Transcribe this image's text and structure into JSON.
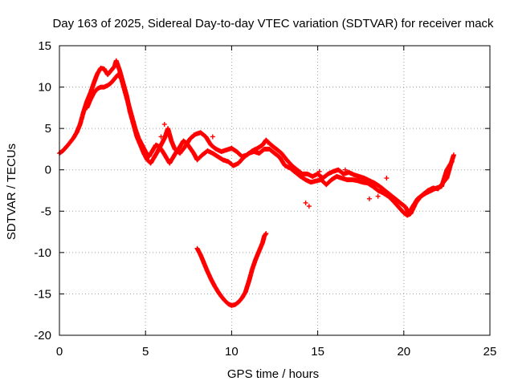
{
  "chart_data": {
    "type": "scatter",
    "title": "Day 163 of 2025, Sidereal Day-to-day VTEC variation (SDTVAR) for receiver mack",
    "xlabel": "GPS time / hours",
    "ylabel": "SDTVAR / TECUs",
    "xlim": [
      0,
      25
    ],
    "ylim": [
      -20,
      15
    ],
    "xticks": [
      0,
      5,
      10,
      15,
      20,
      25
    ],
    "yticks": [
      -20,
      -15,
      -10,
      -5,
      0,
      5,
      10,
      15
    ],
    "grid": true,
    "marker": "plus",
    "color": "#ff0000",
    "series": [
      {
        "name": "SDTVAR main trace",
        "points": [
          [
            0.0,
            2.0
          ],
          [
            0.2,
            2.3
          ],
          [
            0.5,
            3.0
          ],
          [
            0.8,
            3.8
          ],
          [
            1.0,
            4.5
          ],
          [
            1.2,
            5.5
          ],
          [
            1.4,
            7.0
          ],
          [
            1.6,
            8.3
          ],
          [
            1.8,
            9.3
          ],
          [
            2.0,
            10.5
          ],
          [
            2.2,
            11.6
          ],
          [
            2.4,
            12.3
          ],
          [
            2.6,
            12.2
          ],
          [
            2.8,
            11.5
          ],
          [
            3.0,
            12.0
          ],
          [
            3.2,
            12.5
          ],
          [
            3.3,
            13.2
          ],
          [
            3.5,
            12.0
          ],
          [
            3.7,
            10.5
          ],
          [
            3.9,
            9.0
          ],
          [
            4.1,
            7.0
          ],
          [
            4.3,
            5.5
          ],
          [
            4.5,
            4.0
          ],
          [
            4.7,
            3.0
          ],
          [
            4.9,
            2.0
          ],
          [
            5.1,
            1.2
          ],
          [
            5.3,
            0.8
          ],
          [
            5.5,
            1.5
          ],
          [
            5.7,
            2.2
          ],
          [
            5.9,
            3.0
          ],
          [
            6.1,
            3.8
          ],
          [
            6.3,
            5.0
          ],
          [
            6.5,
            3.5
          ],
          [
            6.7,
            2.5
          ],
          [
            7.0,
            2.0
          ],
          [
            7.3,
            2.8
          ],
          [
            7.6,
            3.8
          ],
          [
            7.9,
            4.3
          ],
          [
            8.2,
            4.5
          ],
          [
            8.5,
            4.0
          ],
          [
            8.8,
            3.0
          ],
          [
            9.1,
            2.5
          ],
          [
            9.4,
            2.2
          ],
          [
            9.7,
            2.4
          ],
          [
            10.0,
            2.6
          ],
          [
            10.3,
            2.2
          ],
          [
            10.6,
            1.6
          ],
          [
            10.9,
            1.8
          ],
          [
            11.2,
            2.3
          ],
          [
            11.5,
            2.6
          ],
          [
            11.8,
            3.0
          ],
          [
            12.0,
            3.6
          ],
          [
            12.3,
            3.0
          ],
          [
            12.6,
            2.5
          ],
          [
            12.9,
            2.0
          ],
          [
            13.2,
            1.2
          ],
          [
            13.5,
            0.5
          ],
          [
            13.8,
            0.0
          ],
          [
            14.1,
            -0.5
          ],
          [
            14.4,
            -0.5
          ],
          [
            14.7,
            -0.8
          ],
          [
            15.0,
            -0.5
          ],
          [
            15.3,
            -1.0
          ],
          [
            15.6,
            -0.5
          ],
          [
            15.9,
            -0.2
          ],
          [
            16.2,
            0.0
          ],
          [
            16.5,
            -0.5
          ],
          [
            16.8,
            -0.3
          ],
          [
            17.1,
            -0.6
          ],
          [
            17.4,
            -0.8
          ],
          [
            17.7,
            -1.0
          ],
          [
            18.0,
            -1.3
          ],
          [
            18.3,
            -1.6
          ],
          [
            18.6,
            -2.0
          ],
          [
            18.9,
            -2.5
          ],
          [
            19.2,
            -3.0
          ],
          [
            19.5,
            -3.5
          ],
          [
            19.8,
            -4.0
          ],
          [
            20.1,
            -4.5
          ],
          [
            20.3,
            -5.3
          ],
          [
            20.5,
            -4.5
          ],
          [
            20.8,
            -3.5
          ],
          [
            21.1,
            -3.0
          ],
          [
            21.4,
            -2.5
          ],
          [
            21.7,
            -2.2
          ],
          [
            22.0,
            -2.3
          ],
          [
            22.3,
            -1.5
          ],
          [
            22.5,
            -1.0
          ],
          [
            22.7,
            0.5
          ],
          [
            22.9,
            1.8
          ]
        ]
      },
      {
        "name": "SDTVAR secondary branches",
        "points": [
          [
            1.6,
            7.5
          ],
          [
            1.8,
            8.5
          ],
          [
            2.0,
            9.3
          ],
          [
            2.2,
            9.8
          ],
          [
            2.4,
            10.0
          ],
          [
            2.6,
            10.0
          ],
          [
            2.8,
            10.2
          ],
          [
            3.0,
            10.5
          ],
          [
            3.2,
            11.0
          ],
          [
            3.4,
            11.5
          ],
          [
            3.6,
            11.0
          ],
          [
            3.8,
            9.5
          ],
          [
            4.0,
            8.0
          ],
          [
            4.2,
            6.5
          ],
          [
            4.4,
            5.0
          ],
          [
            4.6,
            3.8
          ],
          [
            4.8,
            3.0
          ],
          [
            5.0,
            2.2
          ],
          [
            5.2,
            1.6
          ],
          [
            5.4,
            2.3
          ],
          [
            5.6,
            3.0
          ],
          [
            5.8,
            2.8
          ],
          [
            6.0,
            2.2
          ],
          [
            6.2,
            1.5
          ],
          [
            6.4,
            0.8
          ],
          [
            6.6,
            1.5
          ],
          [
            6.8,
            2.2
          ],
          [
            7.0,
            2.8
          ],
          [
            7.2,
            3.5
          ],
          [
            7.4,
            3.2
          ],
          [
            7.6,
            2.6
          ],
          [
            7.8,
            2.0
          ],
          [
            8.0,
            1.2
          ],
          [
            8.3,
            1.8
          ],
          [
            8.6,
            2.3
          ],
          [
            8.9,
            2.0
          ],
          [
            9.2,
            1.6
          ],
          [
            9.5,
            1.2
          ],
          [
            9.8,
            1.0
          ],
          [
            10.1,
            0.5
          ],
          [
            10.4,
            0.8
          ],
          [
            10.7,
            1.5
          ],
          [
            11.0,
            2.0
          ],
          [
            11.3,
            2.2
          ],
          [
            11.6,
            2.0
          ],
          [
            11.9,
            2.5
          ],
          [
            12.2,
            2.5
          ],
          [
            12.5,
            2.0
          ],
          [
            12.8,
            1.5
          ],
          [
            13.1,
            0.5
          ],
          [
            13.4,
            0.2
          ],
          [
            13.7,
            -0.3
          ],
          [
            14.0,
            -0.8
          ],
          [
            14.3,
            -1.2
          ],
          [
            14.6,
            -1.5
          ],
          [
            15.2,
            -1.2
          ],
          [
            15.5,
            -1.8
          ],
          [
            15.8,
            -1.2
          ],
          [
            16.1,
            -0.8
          ],
          [
            16.4,
            -1.0
          ],
          [
            16.7,
            -1.2
          ],
          [
            17.0,
            -1.2
          ],
          [
            17.3,
            -1.3
          ],
          [
            17.6,
            -1.5
          ],
          [
            17.9,
            -1.6
          ],
          [
            18.2,
            -2.0
          ],
          [
            18.5,
            -2.5
          ],
          [
            18.8,
            -2.8
          ],
          [
            19.1,
            -3.2
          ],
          [
            19.4,
            -3.8
          ],
          [
            19.7,
            -4.5
          ],
          [
            20.0,
            -5.2
          ],
          [
            20.2,
            -5.5
          ],
          [
            20.4,
            -5.3
          ],
          [
            20.7,
            -4.0
          ],
          [
            21.0,
            -3.2
          ],
          [
            21.3,
            -2.8
          ],
          [
            21.6,
            -2.5
          ],
          [
            21.9,
            -2.2
          ],
          [
            22.2,
            -2.0
          ],
          [
            22.5,
            0.0
          ],
          [
            22.8,
            1.0
          ]
        ]
      },
      {
        "name": "SDTVAR outlying points",
        "points": [
          [
            14.3,
            -4.0
          ],
          [
            14.5,
            -4.4
          ],
          [
            5.9,
            4.0
          ],
          [
            6.1,
            5.5
          ],
          [
            7.8,
            4.2
          ],
          [
            8.9,
            4.0
          ],
          [
            12.1,
            3.3
          ],
          [
            15.1,
            -0.2
          ],
          [
            16.6,
            0.0
          ],
          [
            18.0,
            -3.5
          ],
          [
            18.5,
            -3.2
          ],
          [
            19.0,
            -1.0
          ]
        ]
      },
      {
        "name": "SDTVAR negative dip",
        "points": [
          [
            8.0,
            -9.5
          ],
          [
            8.2,
            -10.3
          ],
          [
            8.4,
            -11.3
          ],
          [
            8.6,
            -12.3
          ],
          [
            8.8,
            -13.2
          ],
          [
            9.0,
            -14.0
          ],
          [
            9.2,
            -14.7
          ],
          [
            9.4,
            -15.3
          ],
          [
            9.6,
            -15.8
          ],
          [
            9.8,
            -16.2
          ],
          [
            10.0,
            -16.4
          ],
          [
            10.2,
            -16.3
          ],
          [
            10.4,
            -16.0
          ],
          [
            10.6,
            -15.5
          ],
          [
            10.8,
            -14.8
          ],
          [
            11.0,
            -13.5
          ],
          [
            11.2,
            -12.0
          ],
          [
            11.4,
            -10.8
          ],
          [
            11.6,
            -9.8
          ],
          [
            11.8,
            -8.8
          ],
          [
            11.9,
            -8.0
          ],
          [
            12.0,
            -7.7
          ]
        ]
      }
    ]
  }
}
